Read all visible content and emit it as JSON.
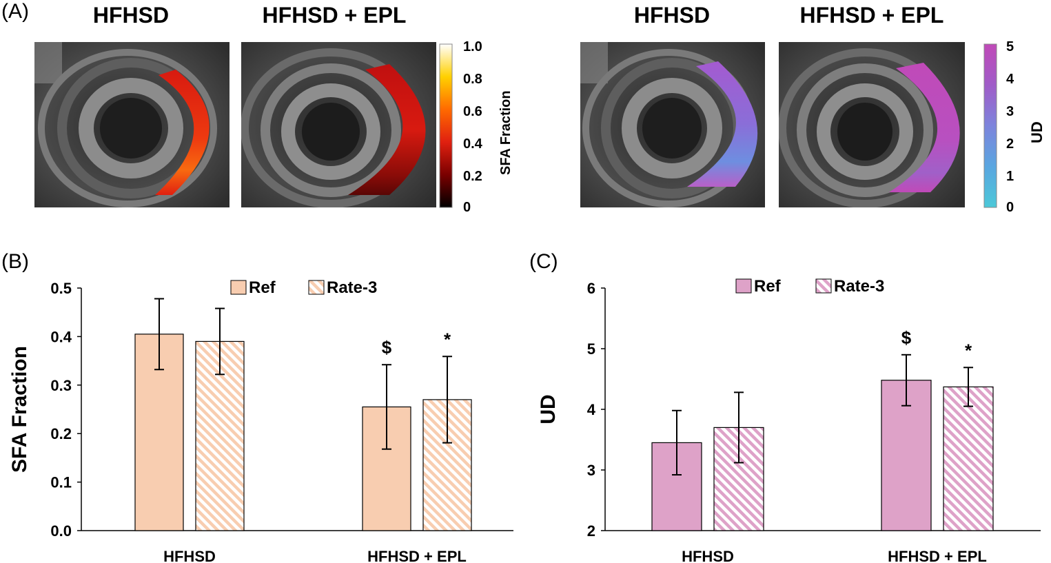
{
  "panel_a": {
    "label": "(A)",
    "sfa_group": {
      "titles": [
        "HFHSD",
        "HFHSD + EPL"
      ],
      "colorbar": {
        "label": "SFA Fraction",
        "ticks": [
          "1.0",
          "0.8",
          "0.6",
          "0.4",
          "0.2",
          "0"
        ]
      }
    },
    "ud_group": {
      "titles": [
        "HFHSD",
        "HFHSD + EPL"
      ],
      "colorbar": {
        "label": "UD",
        "ticks": [
          "5",
          "4",
          "3",
          "2",
          "1",
          "0"
        ]
      }
    },
    "colors": {
      "sfa_stops": [
        "#000000",
        "#7a0000",
        "#e02010",
        "#ff6a00",
        "#ffd000",
        "#ffffff"
      ],
      "ud_stops": [
        "#4cc8d8",
        "#5aa6e0",
        "#7d84dc",
        "#a05cc8",
        "#c04ab8"
      ]
    }
  },
  "chart_data": [
    {
      "panel_label": "(B)",
      "type": "bar",
      "categories": [
        "HFHSD",
        "HFHSD + EPL"
      ],
      "series": [
        {
          "name": "Ref",
          "values": [
            0.405,
            0.255
          ],
          "error": [
            0.073,
            0.087
          ],
          "fill": "#f8cdb0",
          "pattern": "solid"
        },
        {
          "name": "Rate-3",
          "values": [
            0.39,
            0.27
          ],
          "error": [
            0.068,
            0.089
          ],
          "fill": "#f8cdb0",
          "pattern": "hatched"
        }
      ],
      "ylabel": "SFA Fraction",
      "ylim": [
        0.0,
        0.5
      ],
      "yticks": [
        "0.0",
        "0.1",
        "0.2",
        "0.3",
        "0.4",
        "0.5"
      ],
      "annotations": [
        {
          "text": "$",
          "category": 1,
          "series": 0
        },
        {
          "text": "*",
          "category": 1,
          "series": 1
        }
      ],
      "legend": "top"
    },
    {
      "panel_label": "(C)",
      "type": "bar",
      "categories": [
        "HFHSD",
        "HFHSD + EPL"
      ],
      "series": [
        {
          "name": "Ref",
          "values": [
            3.45,
            4.48
          ],
          "error": [
            0.53,
            0.42
          ],
          "fill": "#dea2c8",
          "pattern": "solid"
        },
        {
          "name": "Rate-3",
          "values": [
            3.7,
            4.37
          ],
          "error": [
            0.58,
            0.32
          ],
          "fill": "#dea2c8",
          "pattern": "hatched"
        }
      ],
      "ylabel": "UD",
      "ylim": [
        2,
        6
      ],
      "yticks": [
        "2",
        "3",
        "4",
        "5",
        "6"
      ],
      "annotations": [
        {
          "text": "$",
          "category": 1,
          "series": 0
        },
        {
          "text": "*",
          "category": 1,
          "series": 1
        }
      ],
      "legend": "top"
    }
  ]
}
